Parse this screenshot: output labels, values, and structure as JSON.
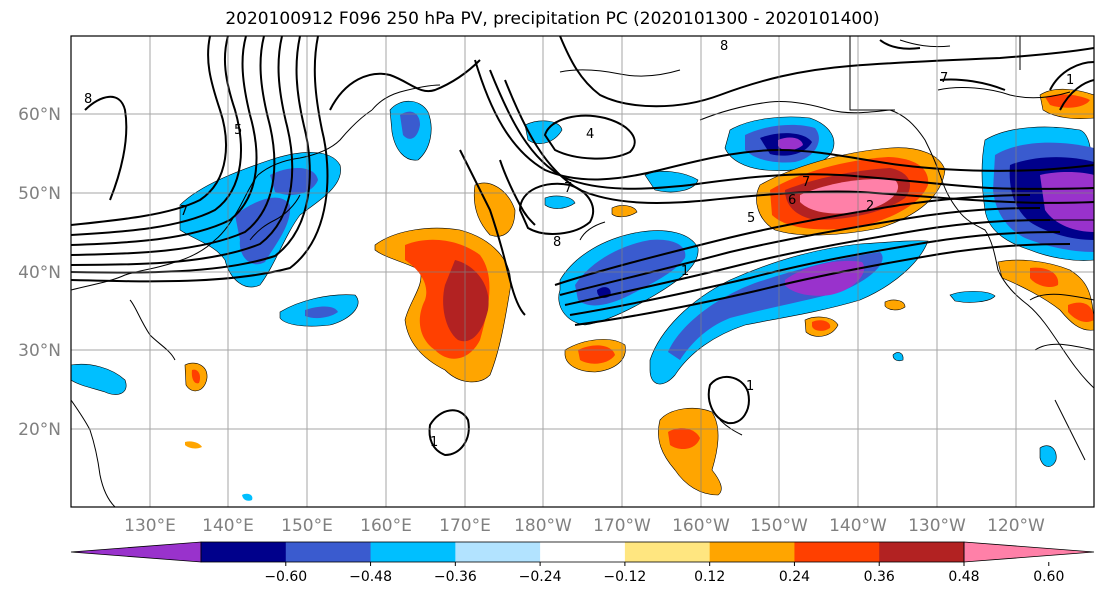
{
  "title": "2020100912 F096 250 hPa PV, precipitation PC (2020101300 - 2020101400)",
  "map": {
    "lat_labels": [
      "60°N",
      "50°N",
      "40°N",
      "30°N",
      "20°N"
    ],
    "lon_labels": [
      "130°E",
      "140°E",
      "150°E",
      "160°E",
      "170°E",
      "180°W",
      "170°W",
      "160°W",
      "150°W",
      "140°W",
      "130°W",
      "120°W"
    ],
    "contour_labels": [
      "8",
      "4",
      "7",
      "8",
      "7",
      "2",
      "5",
      "6",
      "7",
      "1",
      "1",
      "1",
      "8",
      "7",
      "1",
      "5"
    ]
  },
  "colorbar": {
    "colors": [
      "#9932cc",
      "#00008b",
      "#3a5bcf",
      "#00bfff",
      "#b2e3ff",
      "#ffffff",
      "#ffe680",
      "#ffa500",
      "#ff4000",
      "#b22222",
      "#ff80a8"
    ],
    "tick_labels": [
      "−0.60",
      "−0.48",
      "−0.36",
      "−0.24",
      "−0.12",
      "0.12",
      "0.24",
      "0.36",
      "0.48",
      "0.60"
    ]
  }
}
